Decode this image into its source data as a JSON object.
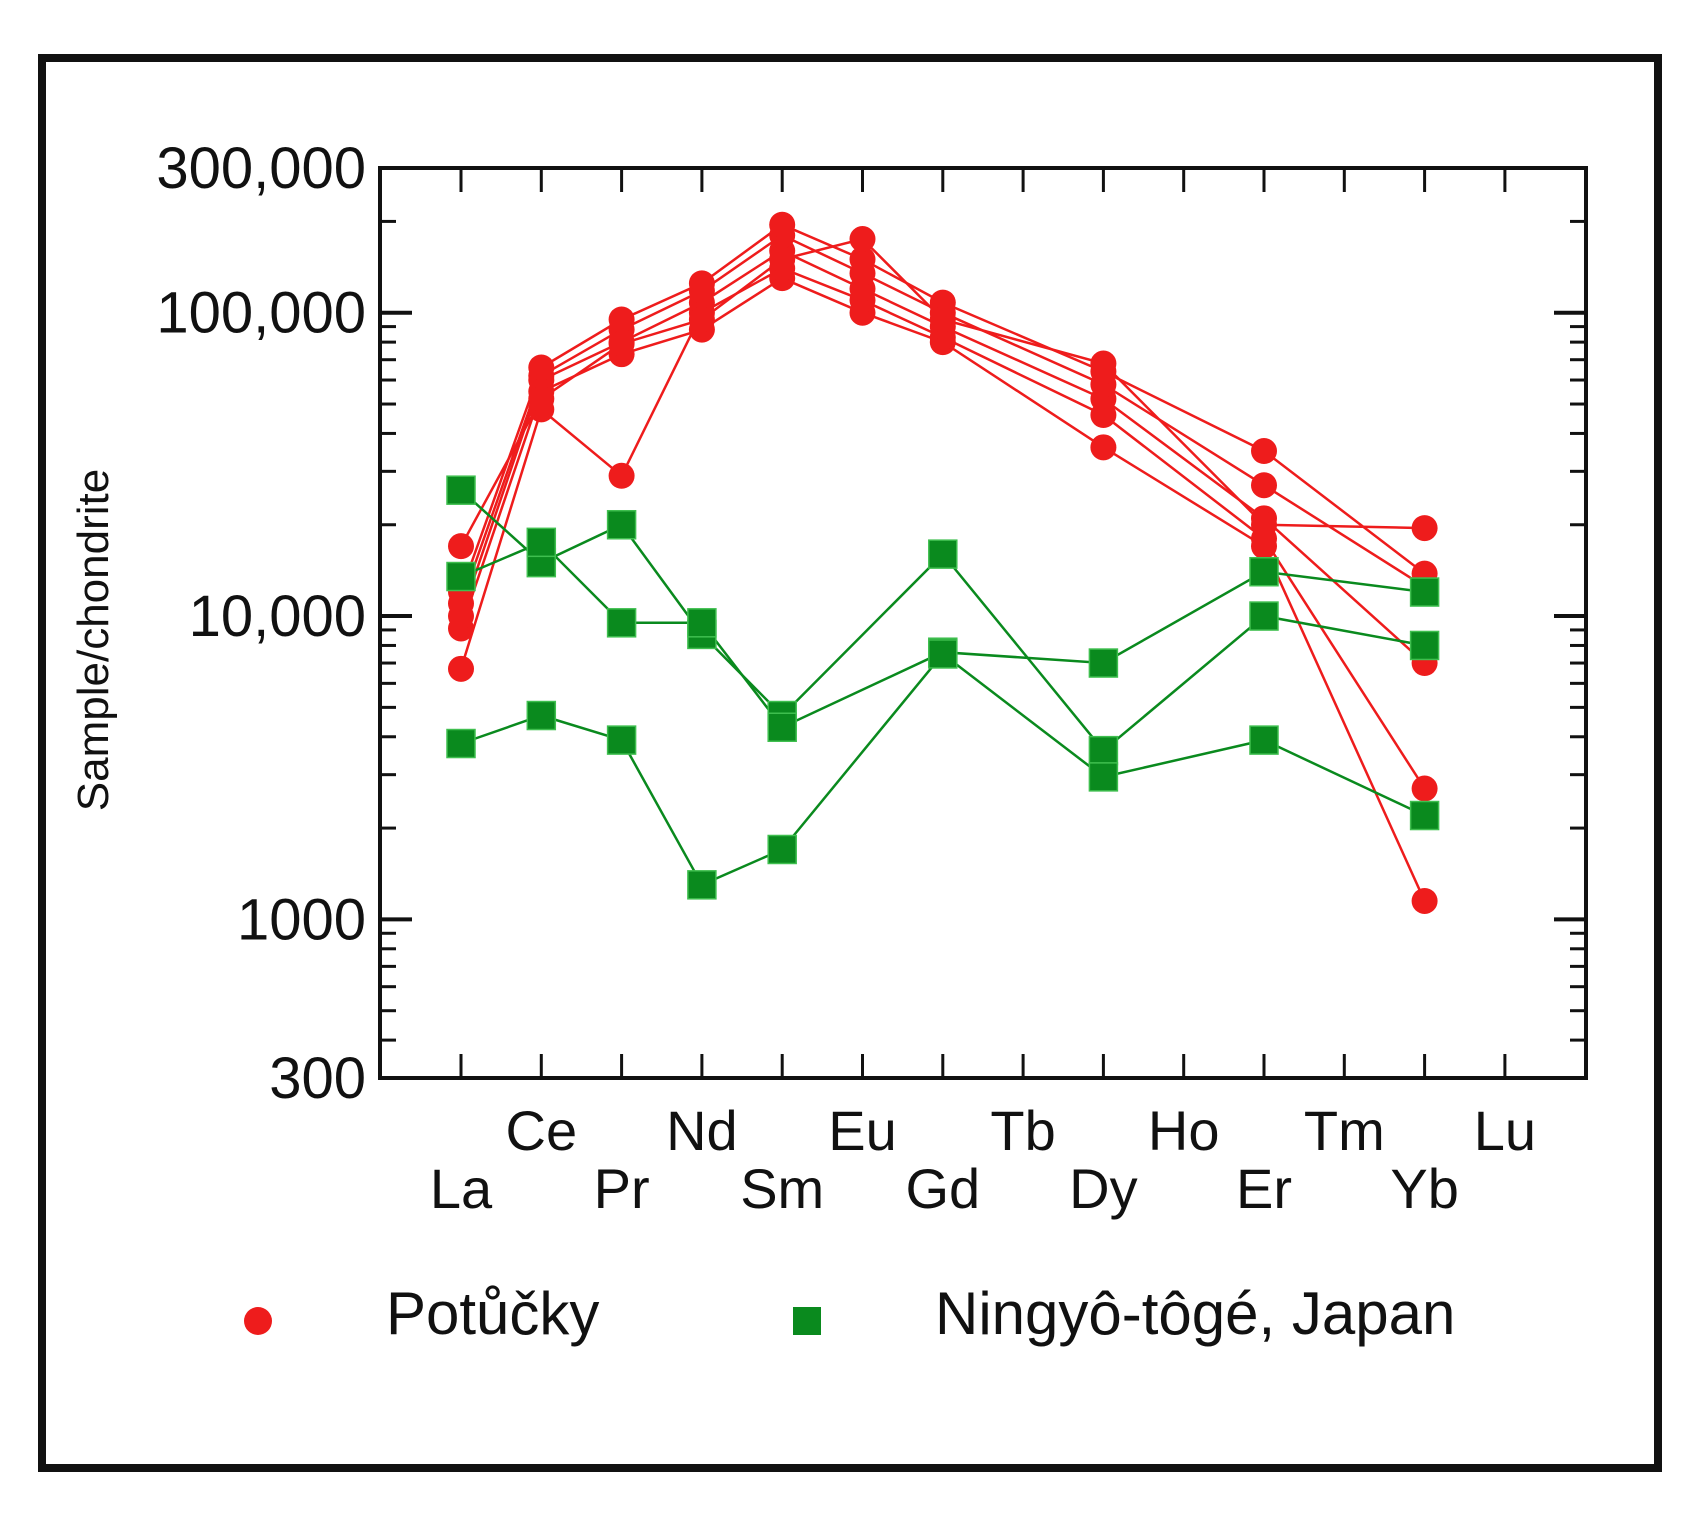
{
  "chart_data": {
    "type": "line",
    "title": "",
    "xlabel": "",
    "ylabel": "Sample/chondrite",
    "yscale": "log",
    "ylim": [
      300,
      300000
    ],
    "ytick_labels": [
      "300,000",
      "100,000",
      "10,000",
      "1000",
      "300"
    ],
    "ytick_values": [
      300000,
      100000,
      10000,
      1000,
      300
    ],
    "categories": [
      "La",
      "Ce",
      "Pr",
      "Nd",
      "Sm",
      "Eu",
      "Gd",
      "Tb",
      "Dy",
      "Ho",
      "Er",
      "Tm",
      "Yb",
      "Lu"
    ],
    "colors": {
      "potucky": "#ee1c1c",
      "ningyo": "#0a8a1e",
      "axis": "#111111"
    },
    "legend": [
      {
        "label": "Potůčky",
        "marker": "circle",
        "color": "#ee1c1c"
      },
      {
        "label": "Ningyô-tôgé, Japan",
        "marker": "square",
        "color": "#0a8a1e"
      }
    ],
    "series": [
      {
        "name": "Potůčky 1",
        "group": "Potůčky",
        "marker": "circle",
        "color": "#ee1c1c",
        "values": [
          9100,
          55000,
          73000,
          88000,
          130000,
          100000,
          80000,
          null,
          36000,
          null,
          17000,
          null,
          1150,
          null
        ]
      },
      {
        "name": "Potůčky 2",
        "group": "Potůčky",
        "marker": "circle",
        "color": "#ee1c1c",
        "values": [
          6700,
          48000,
          29000,
          100000,
          140000,
          110000,
          83000,
          null,
          46000,
          null,
          18000,
          null,
          2700,
          null
        ]
      },
      {
        "name": "Potůčky 3",
        "group": "Potůčky",
        "marker": "circle",
        "color": "#ee1c1c",
        "values": [
          10000,
          60000,
          80000,
          108000,
          160000,
          120000,
          90000,
          null,
          52000,
          null,
          21000,
          null,
          7000,
          null
        ]
      },
      {
        "name": "Potůčky 4",
        "group": "Potůčky",
        "marker": "circle",
        "color": "#ee1c1c",
        "values": [
          11000,
          62000,
          88000,
          118000,
          180000,
          135000,
          100000,
          null,
          58000,
          null,
          27000,
          null,
          12500,
          null
        ]
      },
      {
        "name": "Potůčky 5",
        "group": "Potůčky",
        "marker": "circle",
        "color": "#ee1c1c",
        "values": [
          12000,
          66000,
          95000,
          125000,
          195000,
          150000,
          108000,
          null,
          64000,
          null,
          35000,
          null,
          13800,
          null
        ]
      },
      {
        "name": "Potůčky 6",
        "group": "Potůčky",
        "marker": "circle",
        "color": "#ee1c1c",
        "values": [
          17000,
          52000,
          79000,
          95000,
          150000,
          175000,
          95000,
          null,
          68000,
          null,
          20000,
          null,
          19500,
          null
        ]
      },
      {
        "name": "Ningyô-tôgé 1",
        "group": "Ningyô-tôgé, Japan",
        "marker": "square",
        "color": "#0a8a1e",
        "values": [
          26000,
          15000,
          20000,
          8700,
          4700,
          null,
          16000,
          null,
          3600,
          null,
          10000,
          null,
          8000,
          null
        ]
      },
      {
        "name": "Ningyô-tôgé 2",
        "group": "Ningyô-tôgé, Japan",
        "marker": "square",
        "color": "#0a8a1e",
        "values": [
          13500,
          17500,
          9500,
          9500,
          4300,
          null,
          7600,
          null,
          7000,
          null,
          14000,
          null,
          12000,
          null
        ]
      },
      {
        "name": "Ningyô-tôgé 3",
        "group": "Ningyô-tôgé, Japan",
        "marker": "square",
        "color": "#0a8a1e",
        "values": [
          3800,
          4700,
          3900,
          1300,
          1700,
          null,
          7500,
          null,
          2950,
          null,
          3900,
          null,
          2200,
          null
        ]
      }
    ]
  }
}
